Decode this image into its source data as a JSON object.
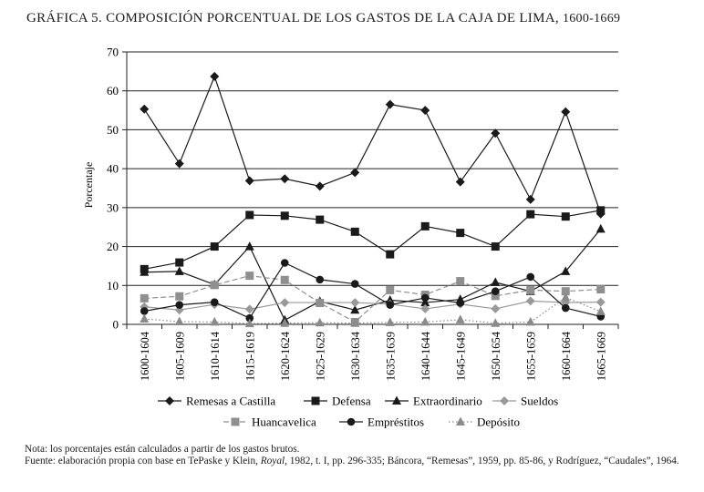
{
  "chart_data": {
    "type": "line",
    "title_prefix": "GRÁFICA 5. COMPOSICIÓN PORCENTUAL DE LOS GASTOS DE LA CAJA DE LIMA, ",
    "title_years": "1600-1669",
    "ylabel": "Porcentaje",
    "xlabel": "",
    "ylim": [
      0,
      70
    ],
    "yticks": [
      0,
      10,
      20,
      30,
      40,
      50,
      60,
      70
    ],
    "grid": true,
    "legend_position": "bottom",
    "categories": [
      "1600-1604",
      "1605-1609",
      "1610-1614",
      "1615-1619",
      "1620-1624",
      "1625-1629",
      "1630-1634",
      "1635-1639",
      "1640-1644",
      "1645-1649",
      "1650-1654",
      "1655-1659",
      "1660-1664",
      "1665-1669"
    ],
    "series": [
      {
        "name": "Remesas a Castilla",
        "color": "#1a1a1a",
        "dash": "solid",
        "marker": "diamond",
        "values": [
          55.3,
          41.3,
          63.7,
          36.9,
          37.4,
          35.5,
          39,
          56.5,
          55,
          36.6,
          49.1,
          32.1,
          54.6,
          28.4
        ]
      },
      {
        "name": "Defensa",
        "color": "#1a1a1a",
        "dash": "solid",
        "marker": "square",
        "values": [
          14.2,
          15.9,
          20,
          28.1,
          27.9,
          26.9,
          23.8,
          18,
          25.2,
          23.5,
          20,
          28.3,
          27.7,
          29.3
        ]
      },
      {
        "name": "Extraordinario",
        "color": "#1a1a1a",
        "dash": "solid",
        "marker": "triangle",
        "values": [
          13.4,
          13.6,
          10.2,
          20,
          1.1,
          5.9,
          3.7,
          6.2,
          5.6,
          6.4,
          10.8,
          8.5,
          13.6,
          24.5
        ]
      },
      {
        "name": "Sueldos",
        "color": "#999999",
        "dash": "solid",
        "marker": "diamond",
        "values": [
          4.5,
          3.7,
          5.1,
          3.9,
          5.6,
          5.6,
          5.6,
          5.2,
          4,
          5.2,
          4,
          6,
          5.6,
          5.7
        ]
      },
      {
        "name": "Huancavelica",
        "color": "#8f8f8f",
        "dash": "dashed",
        "marker": "square",
        "values": [
          6.7,
          7.2,
          10.1,
          12.5,
          11.4,
          5.5,
          0.6,
          8.8,
          7.6,
          11.1,
          7.3,
          8.8,
          8.5,
          9
        ]
      },
      {
        "name": "Empréstitos",
        "color": "#1a1a1a",
        "dash": "solid",
        "marker": "circle",
        "values": [
          3.4,
          5,
          5.7,
          1.6,
          15.8,
          11.5,
          10.4,
          5,
          6.8,
          5.5,
          8.5,
          12.2,
          4.2,
          2
        ]
      },
      {
        "name": "Depósito",
        "color": "#8a8a8a",
        "dash": "dotted",
        "marker": "triangle",
        "values": [
          1.4,
          0.7,
          0.6,
          0.2,
          0.3,
          0.4,
          0.3,
          0.5,
          0.6,
          1.2,
          0.3,
          0.6,
          6.9,
          3.3
        ]
      }
    ]
  },
  "notes": {
    "nota": "Nota: los porcentajes están calculados a partir de los gastos brutos.",
    "fuente_1": "Fuente: elaboración propia con base en TePaske y Klein, ",
    "fuente_royal": "Royal",
    "fuente_2": ", 1982, t. I, pp. 296-335; Báncora, “Remesas”, 1959, pp. 85-86, y Rodríguez, “Caudales”, 1964."
  }
}
